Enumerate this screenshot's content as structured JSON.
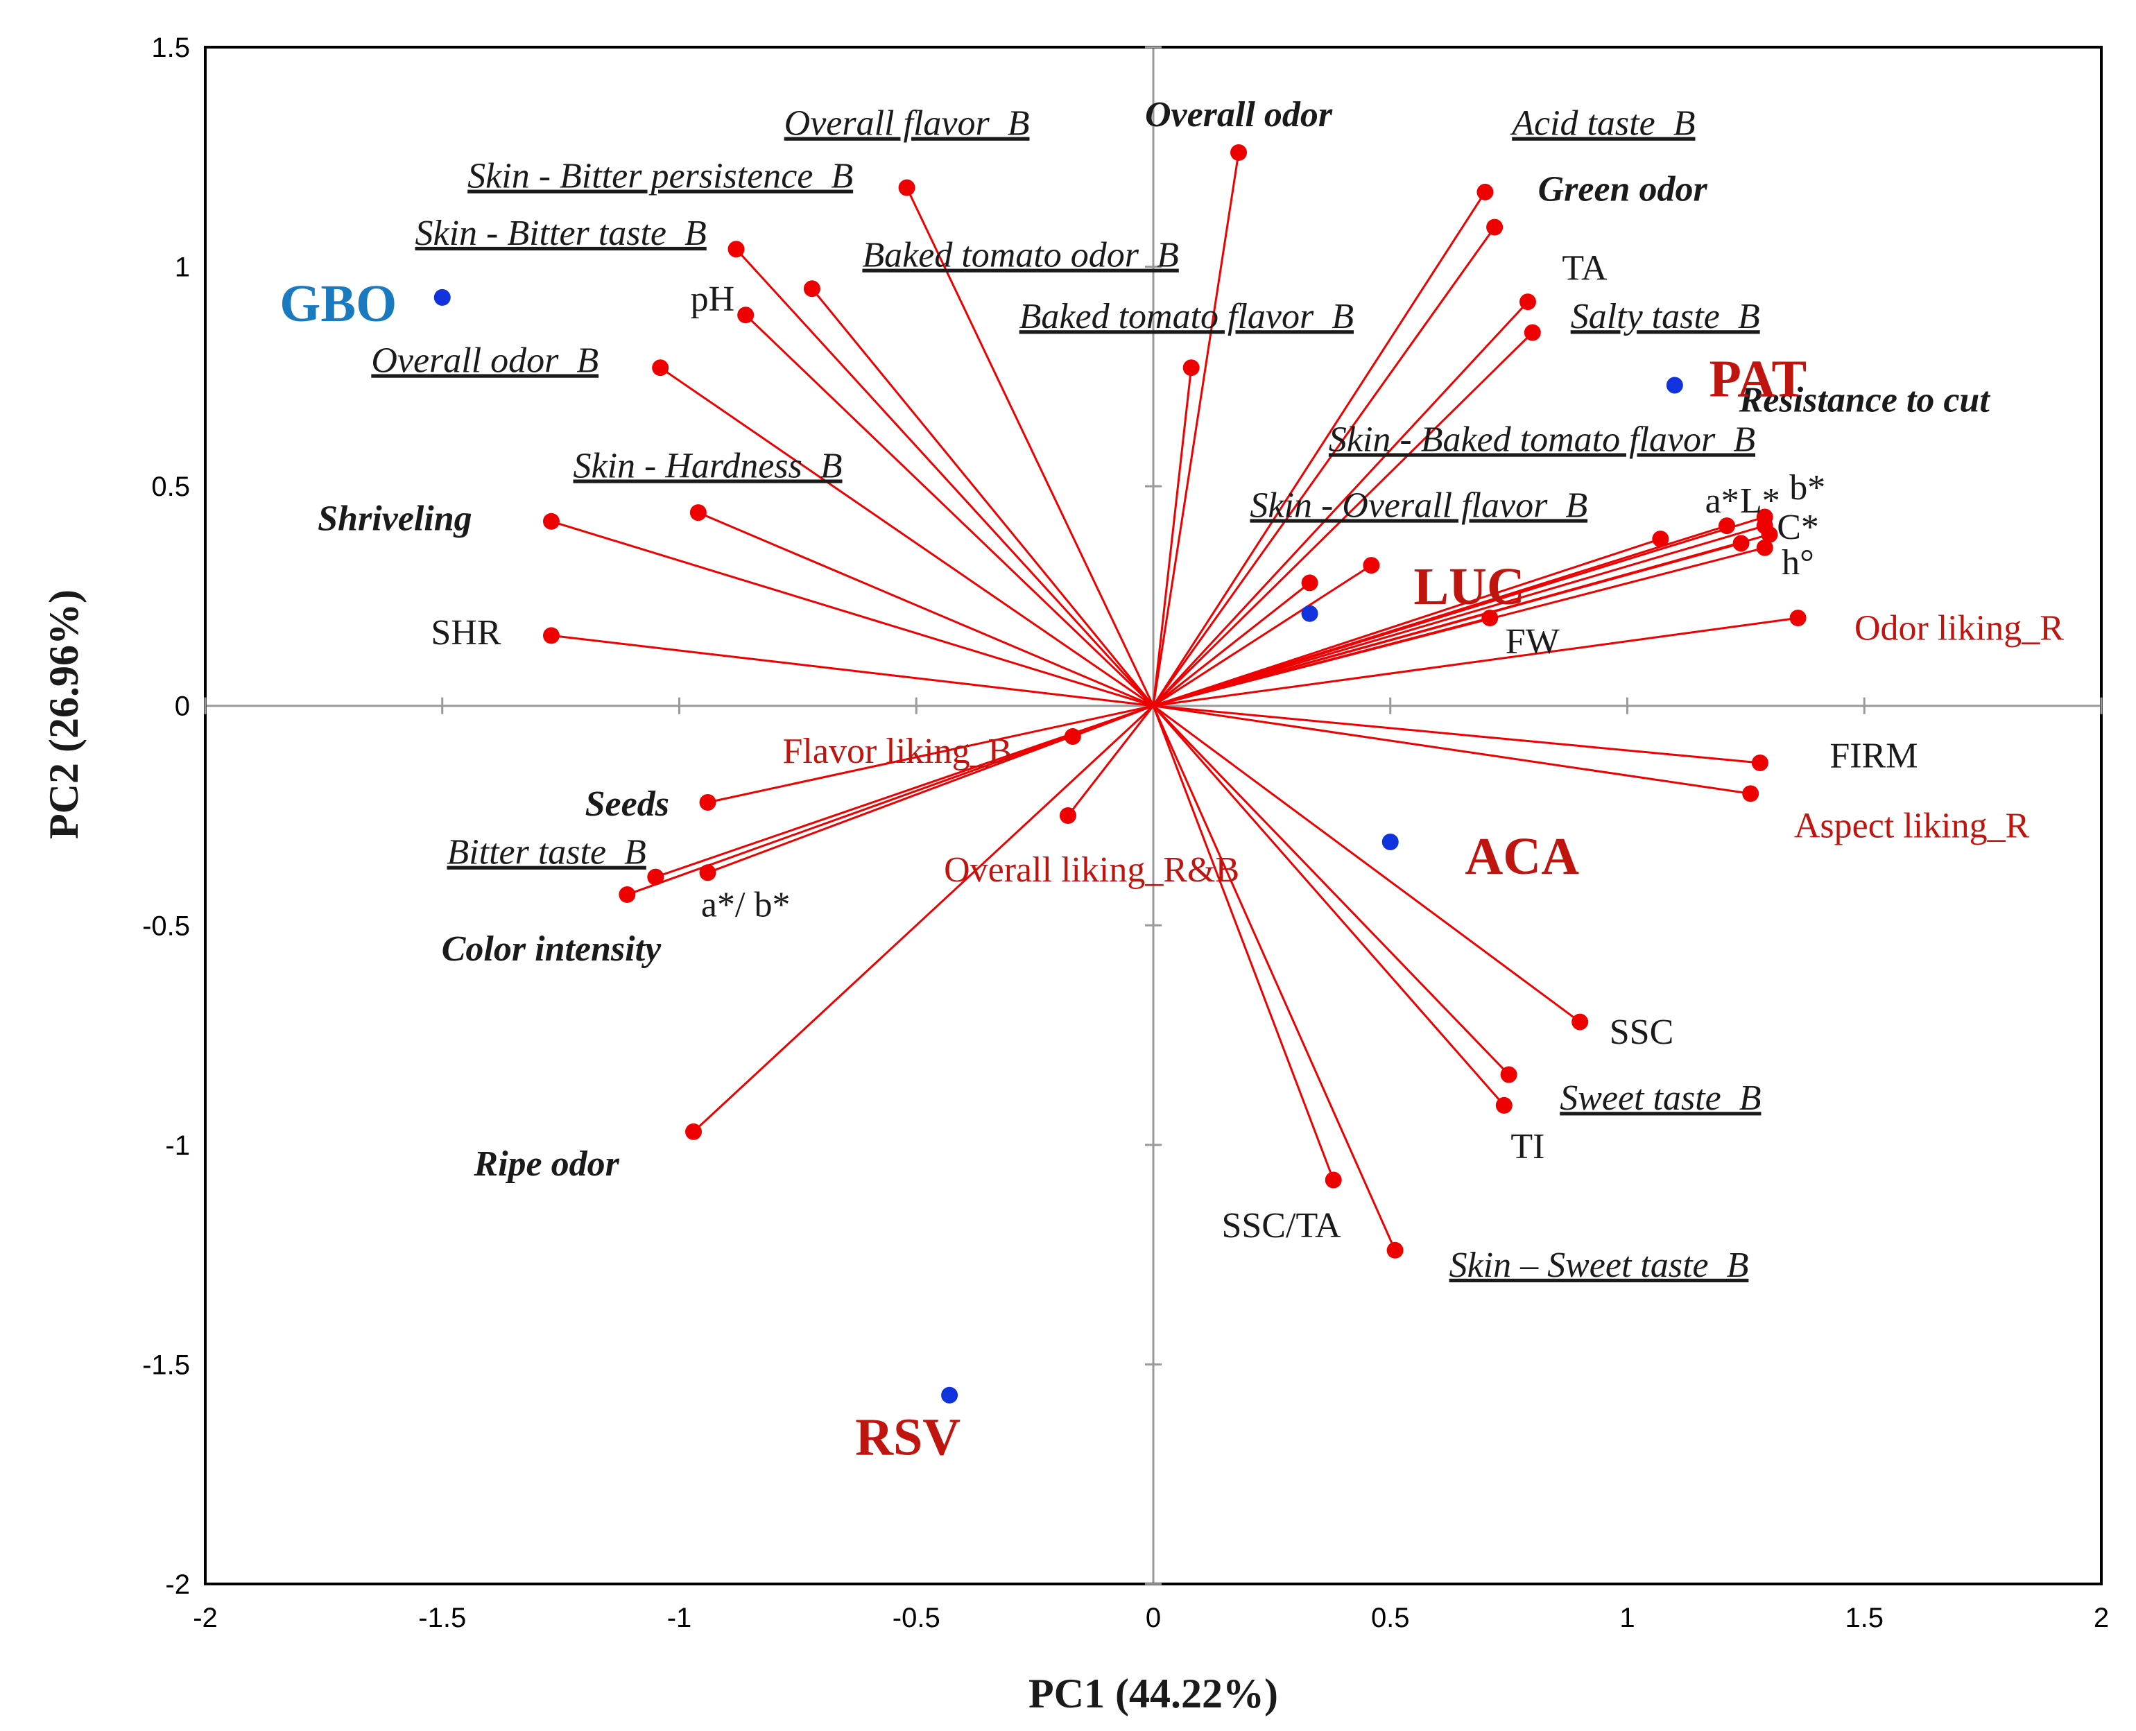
{
  "chart_data": {
    "type": "scatter",
    "subtype": "pca-biplot",
    "xlabel": "PC1 (44.22%)",
    "ylabel": "PC2 (26.96%)",
    "xlim": [
      -2,
      2
    ],
    "ylim": [
      -2,
      1.5
    ],
    "xticks": [
      "-2",
      "-1.5",
      "-1",
      "-0.5",
      "0",
      "0.5",
      "1",
      "1.5",
      "2"
    ],
    "yticks": [
      "-2",
      "-1.5",
      "-1",
      "-0.5",
      "0",
      "0.5",
      "1",
      "1.5"
    ],
    "colors": {
      "variable": "#ee0000",
      "observation": "#1133dd",
      "label_red": "#c0140f",
      "label_blue": "#1a7abf",
      "frame": "#000000",
      "zero_axis": "#999999"
    },
    "observations": [
      {
        "name": "GBO",
        "x": -1.5,
        "y": 0.93,
        "label_color": "#1a7abf"
      },
      {
        "name": "PAT",
        "x": 1.1,
        "y": 0.73,
        "label_color": "#c0140f"
      },
      {
        "name": "LUC",
        "x": 0.33,
        "y": 0.21,
        "label_color": "#c0140f"
      },
      {
        "name": "ACA",
        "x": 0.5,
        "y": -0.31,
        "label_color": "#c0140f"
      },
      {
        "name": "RSV",
        "x": -0.43,
        "y": -1.57,
        "label_color": "#c0140f"
      }
    ],
    "variables": [
      {
        "name": "Overall flavor_B",
        "x": -0.52,
        "y": 1.18,
        "style": "underline-italic",
        "color": "black"
      },
      {
        "name": "Overall odor",
        "x": 0.18,
        "y": 1.26,
        "style": "bold-italic",
        "color": "black"
      },
      {
        "name": "Acid taste_B",
        "x": 0.7,
        "y": 1.17,
        "style": "underline-italic",
        "color": "black"
      },
      {
        "name": "Green odor",
        "x": 0.72,
        "y": 1.09,
        "style": "bold-italic",
        "color": "black"
      },
      {
        "name": "Skin - Bitter persistence_B",
        "x": -0.88,
        "y": 1.04,
        "style": "underline-italic",
        "color": "black"
      },
      {
        "name": "Skin - Bitter taste_B",
        "x": -0.72,
        "y": 0.95,
        "style": "underline-italic",
        "color": "black"
      },
      {
        "name": "pH",
        "x": -0.86,
        "y": 0.89,
        "style": "plain",
        "color": "black"
      },
      {
        "name": "Baked tomato odor_B",
        "x": 0.08,
        "y": 0.77,
        "style": "underline-italic",
        "color": "black"
      },
      {
        "name": "TA",
        "x": 0.79,
        "y": 0.92,
        "style": "plain",
        "color": "black"
      },
      {
        "name": "Salty taste_B",
        "x": 0.8,
        "y": 0.85,
        "style": "underline-italic",
        "color": "black"
      },
      {
        "name": "Overall odor_B",
        "x": -1.04,
        "y": 0.77,
        "style": "underline-italic",
        "color": "black"
      },
      {
        "name": "Skin - Hardness_B",
        "x": -0.96,
        "y": 0.44,
        "style": "underline-italic",
        "color": "black"
      },
      {
        "name": "Shriveling",
        "x": -1.27,
        "y": 0.42,
        "style": "bold-italic",
        "color": "black"
      },
      {
        "name": "SHR",
        "x": -1.27,
        "y": 0.16,
        "style": "plain",
        "color": "black"
      },
      {
        "name": "Skin - Baked tomato flavor_B",
        "x": 1.07,
        "y": 0.38,
        "style": "underline-italic",
        "color": "black"
      },
      {
        "name": "Resistance to cut",
        "x": 1.29,
        "y": 0.43,
        "style": "bold-italic",
        "color": "black"
      },
      {
        "name": "a*",
        "x": 1.21,
        "y": 0.41,
        "style": "plain",
        "color": "black"
      },
      {
        "name": "L*",
        "x": 1.29,
        "y": 0.41,
        "style": "plain",
        "color": "black"
      },
      {
        "name": "b*",
        "x": 1.3,
        "y": 0.39,
        "style": "plain",
        "color": "black"
      },
      {
        "name": "C*",
        "x": 1.24,
        "y": 0.37,
        "style": "plain",
        "color": "black"
      },
      {
        "name": "h°",
        "x": 1.29,
        "y": 0.36,
        "style": "plain",
        "color": "black"
      },
      {
        "name": "Skin - Overall flavor_B",
        "x": 0.33,
        "y": 0.28,
        "style": "underline-italic",
        "color": "black"
      },
      {
        "name": "Baked tomato flavor_B",
        "x": 0.46,
        "y": 0.32,
        "style": "underline-italic",
        "color": "black"
      },
      {
        "name": "FW",
        "x": 0.71,
        "y": 0.2,
        "style": "plain",
        "color": "black"
      },
      {
        "name": "Odor liking_R",
        "x": 1.36,
        "y": 0.2,
        "style": "plain",
        "color": "red"
      },
      {
        "name": "Flavor liking_B",
        "x": -0.17,
        "y": -0.07,
        "style": "plain",
        "color": "red"
      },
      {
        "name": "Overall liking_R&B",
        "x": -0.18,
        "y": -0.25,
        "style": "plain",
        "color": "red"
      },
      {
        "name": "FIRM",
        "x": 1.28,
        "y": -0.13,
        "style": "plain",
        "color": "black"
      },
      {
        "name": "Aspect liking_R",
        "x": 1.26,
        "y": -0.2,
        "style": "plain",
        "color": "red"
      },
      {
        "name": "Seeds",
        "x": -0.94,
        "y": -0.22,
        "style": "bold-italic",
        "color": "black"
      },
      {
        "name": "Bitter taste_B",
        "x": -1.05,
        "y": -0.39,
        "style": "underline-italic",
        "color": "black"
      },
      {
        "name": "a*/ b*",
        "x": -0.94,
        "y": -0.38,
        "style": "plain",
        "color": "black"
      },
      {
        "name": "Color intensity",
        "x": -1.11,
        "y": -0.43,
        "style": "bold-italic",
        "color": "black"
      },
      {
        "name": "Ripe odor",
        "x": -0.97,
        "y": -0.97,
        "style": "bold-italic",
        "color": "black"
      },
      {
        "name": "SSC",
        "x": 0.9,
        "y": -0.72,
        "style": "plain",
        "color": "black"
      },
      {
        "name": "Sweet taste_B",
        "x": 0.75,
        "y": -0.84,
        "style": "underline-italic",
        "color": "black"
      },
      {
        "name": "TI",
        "x": 0.74,
        "y": -0.91,
        "style": "plain",
        "color": "black"
      },
      {
        "name": "SSC/TA",
        "x": 0.38,
        "y": -1.08,
        "style": "plain",
        "color": "black"
      },
      {
        "name": "Skin – Sweet taste_B",
        "x": 0.51,
        "y": -1.24,
        "style": "underline-italic",
        "color": "black"
      }
    ],
    "labels": [
      {
        "text": "Overall flavor_B",
        "style": "underline-italic",
        "color": "black",
        "lx": -0.52,
        "ly": 1.3
      },
      {
        "text": "Overall odor",
        "style": "bold-italic",
        "color": "black",
        "lx": 0.18,
        "ly": 1.32
      },
      {
        "text": "Acid taste_B",
        "style": "underline-italic",
        "color": "black",
        "lx": 0.95,
        "ly": 1.3
      },
      {
        "text": "Green odor",
        "style": "bold-italic",
        "color": "black",
        "lx": 0.99,
        "ly": 1.15
      },
      {
        "text": "Skin - Bitter persistence_B",
        "style": "underline-italic",
        "color": "black",
        "lx": -1.04,
        "ly": 1.18
      },
      {
        "text": "Skin - Bitter taste_B",
        "style": "underline-italic",
        "color": "black",
        "lx": -1.25,
        "ly": 1.05
      },
      {
        "text": "pH",
        "style": "plain",
        "color": "black",
        "lx": -0.93,
        "ly": 0.9
      },
      {
        "text": "Baked tomato odor_B",
        "style": "underline-italic",
        "color": "black",
        "lx": -0.28,
        "ly": 1.0
      },
      {
        "text": "Baked tomato flavor_B",
        "style": "underline-italic",
        "color": "black",
        "lx": 0.07,
        "ly": 0.86
      },
      {
        "text": "TA",
        "style": "plain",
        "color": "black",
        "lx": 0.91,
        "ly": 0.97
      },
      {
        "text": "Salty taste_B",
        "style": "underline-italic",
        "color": "black",
        "lx": 1.08,
        "ly": 0.86
      },
      {
        "text": "Overall odor_B",
        "style": "underline-italic",
        "color": "black",
        "lx": -1.41,
        "ly": 0.76
      },
      {
        "text": "Skin - Hardness_B",
        "style": "underline-italic",
        "color": "black",
        "lx": -0.94,
        "ly": 0.52
      },
      {
        "text": "Shriveling",
        "style": "bold-italic",
        "color": "black",
        "lx": -1.6,
        "ly": 0.4
      },
      {
        "text": "SHR",
        "style": "plain",
        "color": "black",
        "lx": -1.45,
        "ly": 0.14
      },
      {
        "text": "Skin - Baked tomato flavor_B",
        "style": "underline-italic",
        "color": "black",
        "lx": 0.82,
        "ly": 0.58
      },
      {
        "text": "Resistance to cut",
        "style": "bold-italic",
        "color": "black",
        "lx": 1.5,
        "ly": 0.67
      },
      {
        "text": "a*",
        "style": "plain",
        "color": "black",
        "lx": 1.2,
        "ly": 0.44
      },
      {
        "text": "L*",
        "style": "plain",
        "color": "black",
        "lx": 1.28,
        "ly": 0.44
      },
      {
        "text": "b*",
        "style": "plain",
        "color": "black",
        "lx": 1.38,
        "ly": 0.47
      },
      {
        "text": "C*",
        "style": "plain",
        "color": "black",
        "lx": 1.36,
        "ly": 0.38
      },
      {
        "text": "h°",
        "style": "plain",
        "color": "black",
        "lx": 1.36,
        "ly": 0.3
      },
      {
        "text": "Skin - Overall flavor_B",
        "style": "underline-italic",
        "color": "black",
        "lx": 0.56,
        "ly": 0.43
      },
      {
        "text": "FW",
        "style": "plain",
        "color": "black",
        "lx": 0.8,
        "ly": 0.12
      },
      {
        "text": "Odor liking_R",
        "style": "plain",
        "color": "red",
        "lx": 1.7,
        "ly": 0.15
      },
      {
        "text": "Flavor liking_B",
        "style": "plain",
        "color": "red",
        "lx": -0.54,
        "ly": -0.13
      },
      {
        "text": "Overall liking_R&B",
        "style": "plain",
        "color": "red",
        "lx": -0.13,
        "ly": -0.4
      },
      {
        "text": "FIRM",
        "style": "plain",
        "color": "black",
        "lx": 1.52,
        "ly": -0.14
      },
      {
        "text": "Aspect liking_R",
        "style": "plain",
        "color": "red",
        "lx": 1.6,
        "ly": -0.3
      },
      {
        "text": "Seeds",
        "style": "bold-italic",
        "color": "black",
        "lx": -1.11,
        "ly": -0.25
      },
      {
        "text": "Bitter taste_B",
        "style": "underline-italic",
        "color": "black",
        "lx": -1.28,
        "ly": -0.36
      },
      {
        "text": "a*/ b*",
        "style": "plain",
        "color": "black",
        "lx": -0.86,
        "ly": -0.48
      },
      {
        "text": "Color intensity",
        "style": "bold-italic",
        "color": "black",
        "lx": -1.27,
        "ly": -0.58
      },
      {
        "text": "Ripe odor",
        "style": "bold-italic",
        "color": "black",
        "lx": -1.28,
        "ly": -1.07
      },
      {
        "text": "SSC",
        "style": "plain",
        "color": "black",
        "lx": 1.03,
        "ly": -0.77
      },
      {
        "text": "Sweet taste_B",
        "style": "underline-italic",
        "color": "black",
        "lx": 1.07,
        "ly": -0.92
      },
      {
        "text": "TI",
        "style": "plain",
        "color": "black",
        "lx": 0.79,
        "ly": -1.03
      },
      {
        "text": "SSC/TA",
        "style": "plain",
        "color": "black",
        "lx": 0.27,
        "ly": -1.21
      },
      {
        "text": "Skin – Sweet taste_B",
        "style": "underline-italic",
        "color": "black",
        "lx": 0.94,
        "ly": -1.3
      }
    ]
  }
}
